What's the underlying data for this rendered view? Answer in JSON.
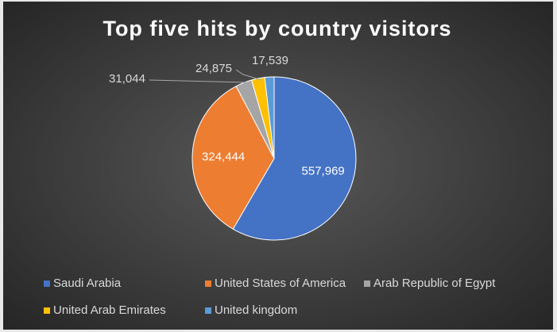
{
  "chart_data": {
    "type": "pie",
    "title": "Top five hits by country visitors",
    "categories": [
      "Saudi Arabia",
      "United States of America",
      "Arab Republic of Egypt",
      "United Arab Emirates",
      "United kingdom"
    ],
    "values": [
      557969,
      324444,
      31044,
      24875,
      17539
    ],
    "value_labels": [
      "557,969",
      "324,444",
      "31,044",
      "24,875",
      "17,539"
    ],
    "colors": [
      "#4472c4",
      "#ed7d31",
      "#a5a5a5",
      "#ffc000",
      "#5b9bd5"
    ],
    "legend": "bottom"
  }
}
